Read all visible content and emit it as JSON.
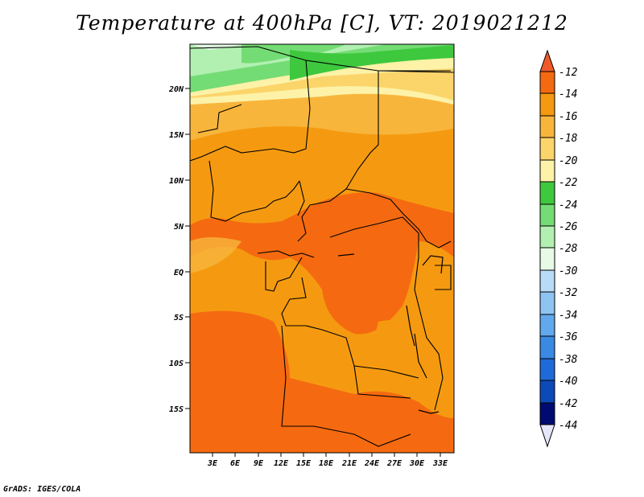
{
  "title": "Temperature at 400hPa [C], VT: 2019021212",
  "footer": "GrADS: IGES/COLA",
  "map": {
    "lat_ticks": [
      "20N",
      "15N",
      "10N",
      "5N",
      "EQ",
      "5S",
      "10S",
      "15S"
    ],
    "lon_ticks": [
      "3E",
      "6E",
      "9E",
      "12E",
      "15E",
      "18E",
      "21E",
      "24E",
      "27E",
      "30E",
      "33E"
    ]
  },
  "colorbar": {
    "labels": [
      "-12",
      "-14",
      "-16",
      "-18",
      "-20",
      "-22",
      "-24",
      "-26",
      "-28",
      "-30",
      "-32",
      "-34",
      "-36",
      "-38",
      "-40",
      "-42",
      "-44"
    ],
    "colors": {
      "top_arrow": "#ee5a2a",
      "c_-14": "#f56a10",
      "c_-16": "#f59a10",
      "c_-18": "#f8b53c",
      "c_-20": "#fbd56a",
      "c_-22": "#fdf2a8",
      "c_-24": "#3ec83e",
      "c_-26": "#74dc74",
      "c_-28": "#b2f0b2",
      "c_-30": "#e6fae6",
      "c_-32": "#b8dcf8",
      "c_-34": "#8ec4f2",
      "c_-36": "#62a8ec",
      "c_-38": "#3a8ae4",
      "c_-40": "#1e6ad8",
      "c_-42": "#0c4ab8",
      "c_-44": "#000a70",
      "bottom_arrow": "#e6e6fa"
    }
  }
}
